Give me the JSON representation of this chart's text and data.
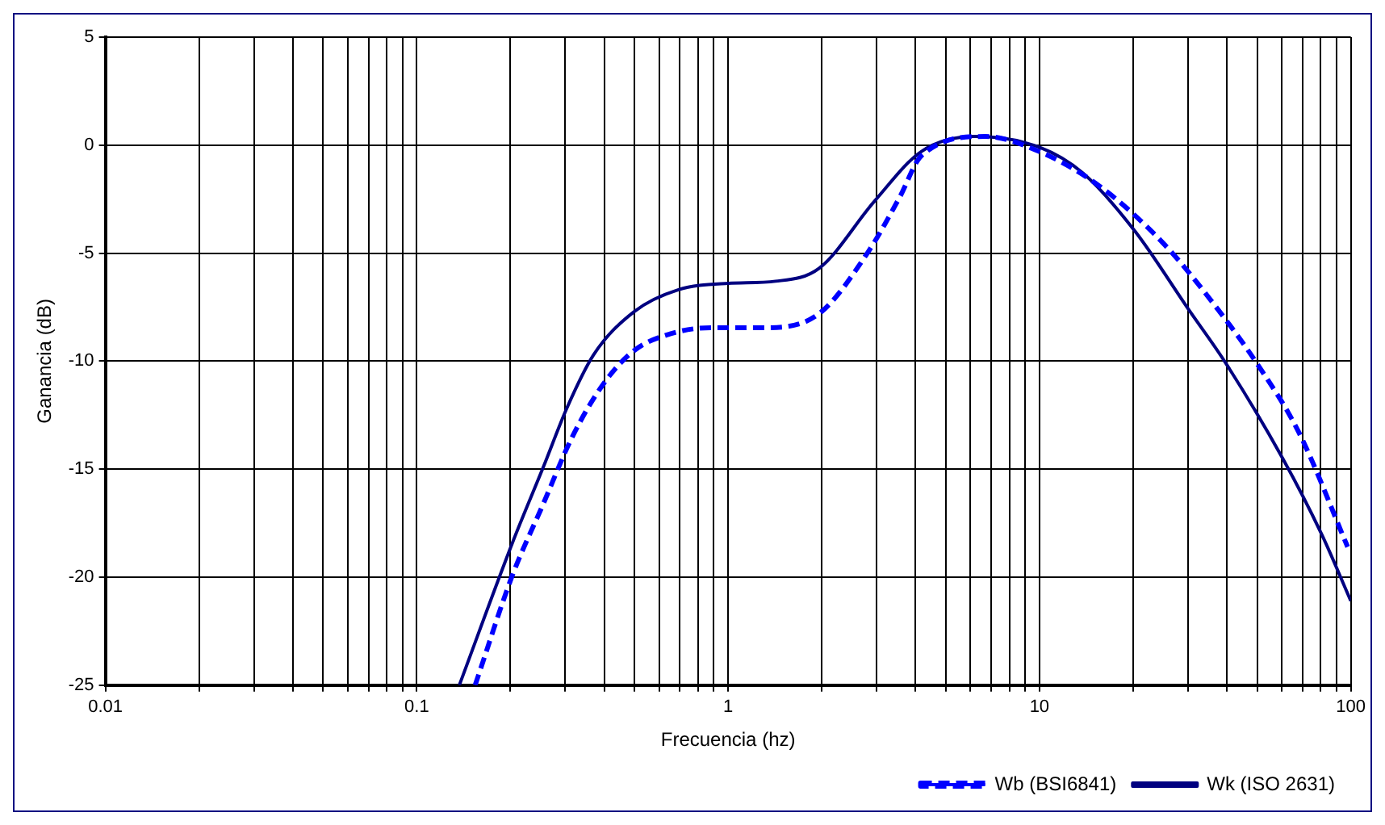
{
  "chart_data": {
    "type": "line",
    "xlabel": "Frecuencia (hz)",
    "ylabel": "Ganancia (dB)",
    "log": "x",
    "grid": true,
    "legend": "bottom right",
    "xlim": [
      0.01,
      100
    ],
    "ylim": [
      -25,
      5
    ],
    "xticks": [
      0.01,
      {
        "value": 0.02,
        "label": null
      },
      {
        "value": 0.03,
        "label": null
      },
      {
        "value": 0.04,
        "label": null
      },
      {
        "value": 0.05,
        "label": null
      },
      {
        "value": 0.06,
        "label": null
      },
      {
        "value": 0.07,
        "label": null
      },
      {
        "value": 0.08,
        "label": null
      },
      {
        "value": 0.09,
        "label": null
      },
      0.1,
      {
        "value": 0.2,
        "label": null
      },
      {
        "value": 0.3,
        "label": null
      },
      {
        "value": 0.4,
        "label": null
      },
      {
        "value": 0.5,
        "label": null
      },
      {
        "value": 0.6,
        "label": null
      },
      {
        "value": 0.7,
        "label": null
      },
      {
        "value": 0.8,
        "label": null
      },
      {
        "value": 0.9,
        "label": null
      },
      1,
      {
        "value": 2,
        "label": null
      },
      {
        "value": 3,
        "label": null
      },
      {
        "value": 4,
        "label": null
      },
      {
        "value": 5,
        "label": null
      },
      {
        "value": 6,
        "label": null
      },
      {
        "value": 7,
        "label": null
      },
      {
        "value": 8,
        "label": null
      },
      {
        "value": 9,
        "label": null
      },
      10,
      {
        "value": 20,
        "label": null
      },
      {
        "value": 30,
        "label": null
      },
      {
        "value": 40,
        "label": null
      },
      {
        "value": 50,
        "label": null
      },
      {
        "value": 60,
        "label": null
      },
      {
        "value": 70,
        "label": null
      },
      {
        "value": 80,
        "label": null
      },
      {
        "value": 90,
        "label": null
      },
      100
    ],
    "yticks": [
      -25,
      -20,
      -15,
      -10,
      -5,
      0,
      5
    ],
    "series": [
      {
        "name": "Wb (BSI6841)",
        "color": "#0000ff",
        "line_style": "dashed",
        "x": [
          0.154,
          0.203,
          0.255,
          0.316,
          0.4,
          0.5,
          0.63,
          0.88,
          1.3,
          1.96,
          2.8,
          3.56,
          4.17,
          6.7,
          10,
          15.6,
          25.2,
          37.4,
          49.9,
          68.1,
          97.7
        ],
        "values": [
          -25,
          -19.9,
          -16.6,
          -13.5,
          -11,
          -9.5,
          -8.8,
          -8.45,
          -8.45,
          -7.8,
          -5,
          -2.4,
          -0.5,
          0.4,
          -0.3,
          -1.9,
          -4.6,
          -7.6,
          -10.1,
          -13.3,
          -18.6
        ]
      },
      {
        "name": "Wk (ISO 2631)",
        "color": "#000080",
        "line_style": "solid",
        "x": [
          0.137,
          0.203,
          0.255,
          0.305,
          0.37,
          0.5,
          0.69,
          1,
          1.42,
          1.96,
          2.95,
          4.17,
          6.2,
          10,
          13.8,
          20.3,
          30.1,
          39.7,
          60.4,
          80.5,
          100
        ],
        "values": [
          -25,
          -18.4,
          -14.9,
          -12.1,
          -9.7,
          -7.7,
          -6.7,
          -6.4,
          -6.3,
          -5.7,
          -2.6,
          -0.3,
          0.4,
          -0.1,
          -1.3,
          -4,
          -7.6,
          -10.1,
          -14.5,
          -18,
          -21.1
        ]
      }
    ]
  }
}
